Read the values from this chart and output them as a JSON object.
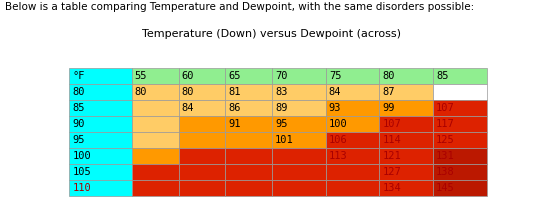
{
  "title1": "Below is a table comparing Temperature and Dewpoint, with the same disorders possible:",
  "title2": "Temperature (Down) versus Dewpoint (across)",
  "col_headers": [
    "°F",
    "55",
    "60",
    "65",
    "70",
    "75",
    "80",
    "85"
  ],
  "row_headers": [
    "80",
    "85",
    "90",
    "95",
    "100",
    "105",
    "110"
  ],
  "values": [
    [
      "80",
      "80",
      "81",
      "83",
      "84",
      "87",
      ""
    ],
    [
      "",
      "84",
      "86",
      "89",
      "93",
      "99",
      "107"
    ],
    [
      "",
      "",
      "91",
      "95",
      "100",
      "107",
      "117"
    ],
    [
      "",
      "",
      "",
      "101",
      "106",
      "114",
      "125"
    ],
    [
      "",
      "",
      "",
      "",
      "113",
      "121",
      "131"
    ],
    [
      "",
      "",
      "",
      "",
      "",
      "127",
      "138"
    ],
    [
      "",
      "",
      "",
      "",
      "",
      "134",
      "145"
    ]
  ],
  "cell_colors": [
    [
      "#00FFFF",
      "#90EE90",
      "#90EE90",
      "#90EE90",
      "#90EE90",
      "#90EE90",
      "#90EE90",
      "#90EE90"
    ],
    [
      "#00FFFF",
      "#FFCC66",
      "#FFCC66",
      "#FFCC66",
      "#FFCC66",
      "#FFCC66",
      "#FFCC66",
      "#FFFFFF"
    ],
    [
      "#00FFFF",
      "#FFCC66",
      "#FFCC66",
      "#FFCC66",
      "#FFCC66",
      "#FF9900",
      "#FF9900",
      "#DD2200"
    ],
    [
      "#00FFFF",
      "#FFCC66",
      "#FFCC66",
      "#FF9900",
      "#FF9900",
      "#DD2200",
      "#DD2200",
      "#CC2200"
    ],
    [
      "#00FFFF",
      "#FFCC66",
      "#FF9900",
      "#FF9900",
      "#DD2200",
      "#DD2200",
      "#CC2200",
      "#CC2200"
    ],
    [
      "#00FFFF",
      "#FF9900",
      "#DD2200",
      "#DD2200",
      "#DD2200",
      "#DD2200",
      "#CC2200",
      "#CC2200"
    ],
    [
      "#00FFFF",
      "#DD2200",
      "#DD2200",
      "#DD2200",
      "#DD2200",
      "#DD2200",
      "#CC2200",
      "#CC2200"
    ],
    [
      "#00FFFF",
      "#DD2200",
      "#DD2200",
      "#DD2200",
      "#DD2200",
      "#DD2200",
      "#CC2200",
      "#CC2200"
    ]
  ],
  "col_widths_rel": [
    1.35,
    1.0,
    1.0,
    1.0,
    1.15,
    1.15,
    1.15,
    1.15
  ],
  "background_color": "#FFFFFF",
  "title1_fontsize": 7.5,
  "title2_fontsize": 8.0,
  "cell_fontsize": 7.5,
  "border_color": "#999999"
}
